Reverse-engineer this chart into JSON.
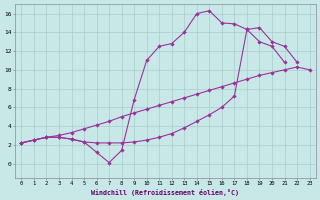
{
  "xlabel": "Windchill (Refroidissement éolien,°C)",
  "bg_color": "#c8e8e8",
  "grid_color": "#aacccc",
  "line_color": "#993399",
  "xlim": [
    -0.5,
    23.5
  ],
  "ylim": [
    -1.5,
    17
  ],
  "xticks": [
    0,
    1,
    2,
    3,
    4,
    5,
    6,
    7,
    8,
    9,
    10,
    11,
    12,
    13,
    14,
    15,
    16,
    17,
    18,
    19,
    20,
    21,
    22,
    23
  ],
  "yticks": [
    0,
    2,
    4,
    6,
    8,
    10,
    12,
    14,
    16
  ],
  "lineA_x": [
    0,
    1,
    2,
    3,
    4,
    5,
    6,
    7,
    8,
    9,
    10,
    11,
    12,
    13,
    14,
    15,
    16,
    17,
    18,
    19,
    20,
    21
  ],
  "lineA_y": [
    2.2,
    2.5,
    2.8,
    2.8,
    2.6,
    2.3,
    1.2,
    0.1,
    1.4,
    6.8,
    11.0,
    12.5,
    12.8,
    14.0,
    16.0,
    16.3,
    15.0,
    14.9,
    14.3,
    13.0,
    12.5,
    10.8
  ],
  "lineB_x": [
    0,
    1,
    2,
    3,
    4,
    5,
    6,
    7,
    8,
    9,
    10,
    11,
    12,
    13,
    14,
    15,
    16,
    17,
    18,
    19,
    20,
    21,
    22
  ],
  "lineB_y": [
    2.2,
    2.5,
    2.8,
    2.8,
    2.6,
    2.3,
    2.2,
    2.2,
    2.2,
    2.3,
    2.5,
    2.8,
    3.2,
    3.8,
    4.5,
    5.2,
    6.0,
    7.2,
    14.3,
    14.5,
    13.0,
    12.5,
    10.8
  ],
  "lineC_x": [
    0,
    1,
    2,
    3,
    4,
    5,
    6,
    7,
    8,
    9,
    10,
    11,
    12,
    13,
    14,
    15,
    16,
    17,
    18,
    19,
    20,
    21,
    22,
    23
  ],
  "lineC_y": [
    2.2,
    2.5,
    2.8,
    3.0,
    3.3,
    3.7,
    4.1,
    4.5,
    5.0,
    5.4,
    5.8,
    6.2,
    6.6,
    7.0,
    7.4,
    7.8,
    8.2,
    8.6,
    9.0,
    9.4,
    9.7,
    10.0,
    10.3,
    10.0
  ]
}
